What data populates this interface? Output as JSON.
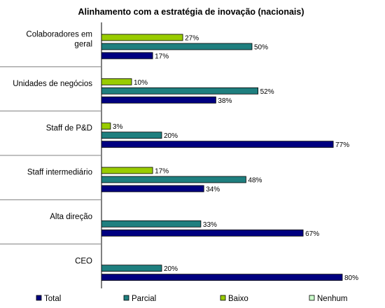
{
  "chart_data": {
    "type": "bar",
    "orientation": "horizontal",
    "title": "Alinhamento com a estratégia de inovação (nacionais)",
    "categories": [
      "Colaboradores em geral",
      "Unidades de negócios",
      "Staff de P&D",
      "Staff intermediário",
      "Alta direção",
      "CEO"
    ],
    "category_lines": [
      [
        "Colaboradores em",
        "geral"
      ],
      [
        "Unidades de negócios"
      ],
      [
        "Staff de P&D"
      ],
      [
        "Staff intermediário"
      ],
      [
        "Alta direção"
      ],
      [
        "CEO"
      ]
    ],
    "series": [
      {
        "name": "Total",
        "color": "#000080",
        "values": [
          17,
          38,
          77,
          34,
          67,
          80
        ]
      },
      {
        "name": "Parcial",
        "color": "#1f7f7f",
        "values": [
          50,
          52,
          20,
          48,
          33,
          20
        ]
      },
      {
        "name": "Baixo",
        "color": "#99cc00",
        "values": [
          27,
          10,
          3,
          17,
          null,
          null
        ]
      },
      {
        "name": "Nenhum",
        "color": "#ccffcc",
        "values": [
          null,
          null,
          null,
          null,
          null,
          null
        ]
      }
    ],
    "bar_order_top_to_bottom": [
      "Baixo",
      "Parcial",
      "Total"
    ],
    "value_suffix": "%",
    "xlim": [
      0,
      100
    ],
    "legend_position": "bottom",
    "grid": false
  }
}
